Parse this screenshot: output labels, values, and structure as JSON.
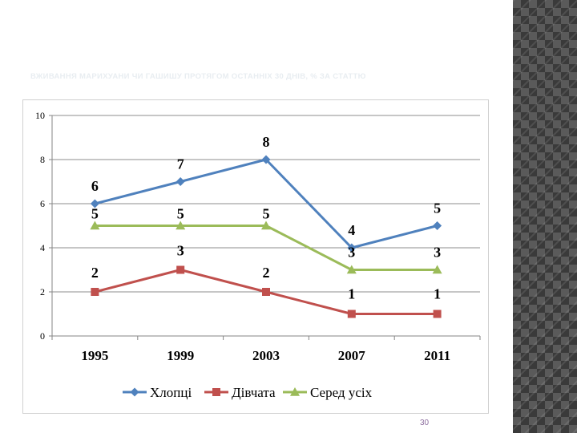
{
  "slide": {
    "title": "ВЖИВАННЯ МАРИХУАНИ ЧИ ГАШИШУ ПРОТЯГОМ ОСТАННІХ 30 ДНІВ, % ЗА СТАТТЮ",
    "page_number": "30"
  },
  "colors": {
    "boys": "#4f81bd",
    "girls": "#c0504d",
    "all": "#9bbb59",
    "grid": "#8c8c8c",
    "side_dark": "#3a3a3a",
    "side_light": "#5a5a5a"
  },
  "chart_data": {
    "type": "line",
    "title": "",
    "xlabel": "",
    "ylabel": "",
    "categories": [
      "1995",
      "1999",
      "2003",
      "2007",
      "2011"
    ],
    "ylim": [
      0,
      10
    ],
    "yticks": [
      "0",
      "2",
      "4",
      "6",
      "8",
      "10"
    ],
    "grid": true,
    "legend_position": "bottom",
    "series": [
      {
        "name": "Хлопці",
        "marker": "diamond",
        "color": "#4f81bd",
        "values": [
          6,
          7,
          8,
          4,
          5
        ],
        "labels": [
          "6",
          "7",
          "8",
          "4",
          "5"
        ]
      },
      {
        "name": "Дівчата",
        "marker": "square",
        "color": "#c0504d",
        "values": [
          2,
          3,
          2,
          1,
          1
        ],
        "labels": [
          "2",
          "3",
          "2",
          "1",
          "1"
        ]
      },
      {
        "name": "Серед усіх",
        "marker": "triangle",
        "color": "#9bbb59",
        "values": [
          5,
          5,
          5,
          3,
          3
        ],
        "labels": [
          "5",
          "5",
          "5",
          "3",
          "3"
        ]
      }
    ]
  }
}
